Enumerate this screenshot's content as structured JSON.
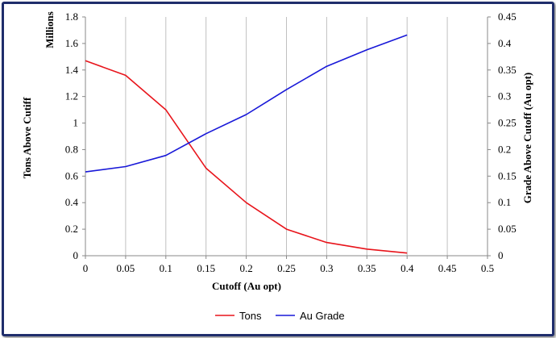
{
  "chart_data": {
    "type": "line",
    "title": "",
    "xlabel": "Cutoff (Au opt)",
    "ylabel_left": "Tons Above Cutiff",
    "ylabel_left_unit": "Millions",
    "ylabel_right": "Grade Above Cutoff (Au opt)",
    "x_ticks": [
      "0",
      "0.05",
      "0.1",
      "0.15",
      "0.2",
      "0.25",
      "0.3",
      "0.35",
      "0.4",
      "0.45",
      "0.5"
    ],
    "y_left_ticks": [
      "0",
      "0.2",
      "0.4",
      "0.6",
      "0.8",
      "1",
      "1.2",
      "1.4",
      "1.6",
      "1.8"
    ],
    "y_right_ticks": [
      "0",
      "0.05",
      "0.1",
      "0.15",
      "0.2",
      "0.25",
      "0.3",
      "0.35",
      "0.4",
      "0.45"
    ],
    "xlim": [
      0,
      0.5
    ],
    "ylim_left": [
      0,
      1.8
    ],
    "ylim_right": [
      0,
      0.45
    ],
    "grid": "vertical",
    "legend_position": "bottom",
    "series": [
      {
        "name": "Tons",
        "axis": "left",
        "color": "#e8141b",
        "x": [
          0,
          0.05,
          0.1,
          0.15,
          0.2,
          0.25,
          0.3,
          0.35,
          0.4
        ],
        "values": [
          1.47,
          1.36,
          1.1,
          0.66,
          0.4,
          0.2,
          0.1,
          0.05,
          0.02
        ]
      },
      {
        "name": "Au Grade",
        "axis": "right",
        "color": "#1818d8",
        "x": [
          0,
          0.05,
          0.1,
          0.15,
          0.2,
          0.25,
          0.3,
          0.35,
          0.4
        ],
        "values": [
          0.158,
          0.168,
          0.189,
          0.23,
          0.266,
          0.313,
          0.357,
          0.388,
          0.416
        ]
      }
    ]
  }
}
